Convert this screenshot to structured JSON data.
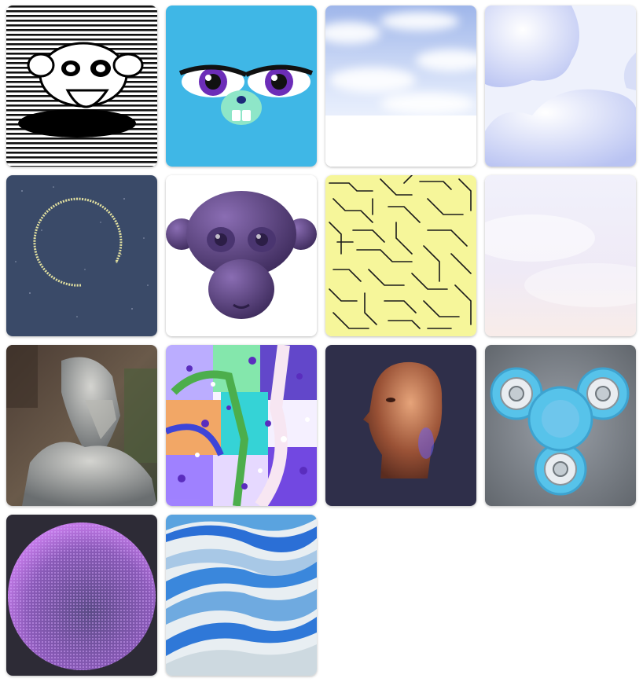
{
  "gallery": {
    "tiles": [
      {
        "name": "monkey-head-halftone-icon"
      },
      {
        "name": "cartoon-bunny-face-icon"
      },
      {
        "name": "sky-clouds-icon"
      },
      {
        "name": "soft-clouds-icon"
      },
      {
        "name": "particle-ring-icon"
      },
      {
        "name": "purple-monkey-head-icon"
      },
      {
        "name": "maze-pattern-icon"
      },
      {
        "name": "pastel-fog-icon"
      },
      {
        "name": "statue-photo-icon"
      },
      {
        "name": "paint-splatter-icon"
      },
      {
        "name": "bronze-head-icon"
      },
      {
        "name": "fidget-spinner-icon"
      },
      {
        "name": "purple-sphere-icon"
      },
      {
        "name": "blue-waves-icon"
      }
    ]
  }
}
